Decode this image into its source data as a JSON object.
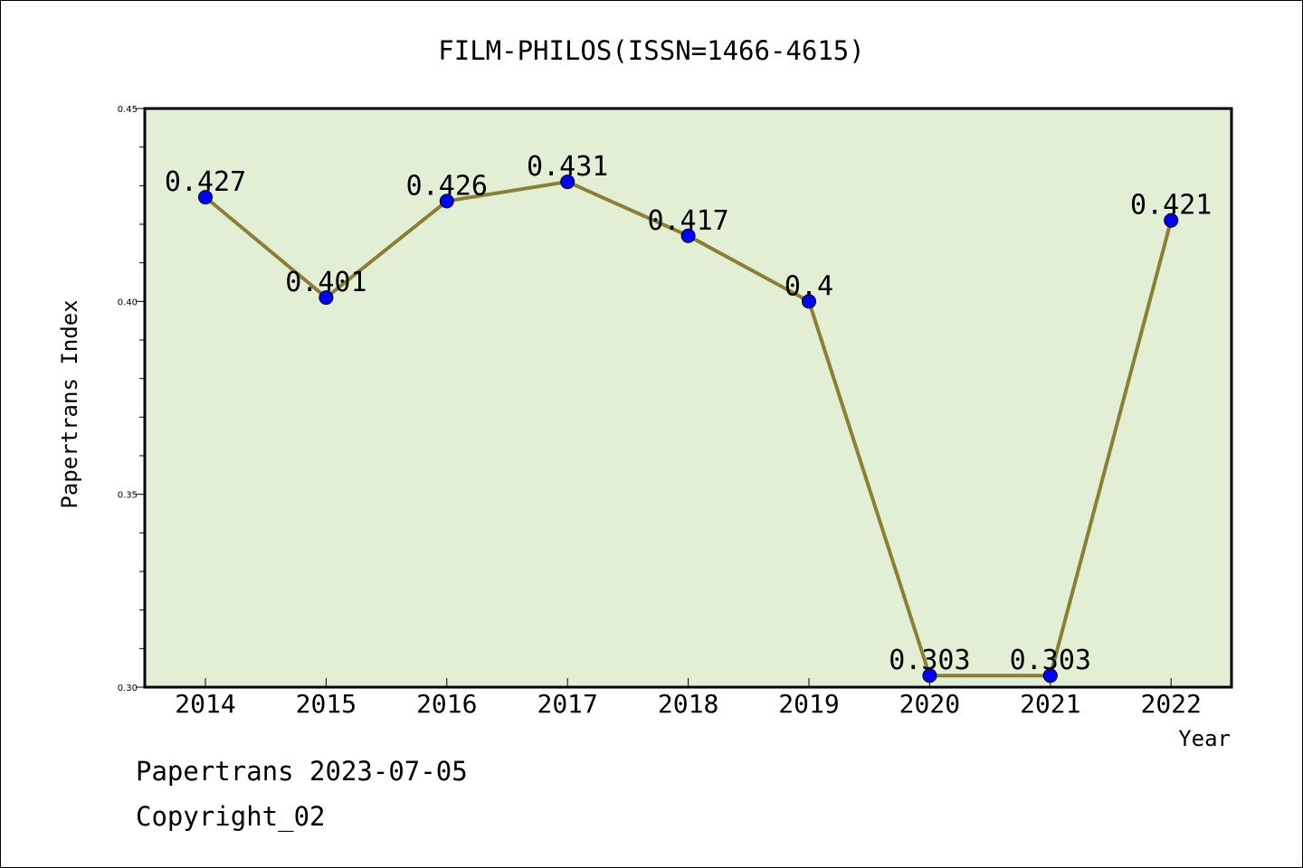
{
  "chart_data": {
    "type": "line",
    "title": "FILM-PHILOS(ISSN=1466-4615)",
    "xlabel": "Year",
    "ylabel": "Papertrans Index",
    "categories": [
      "2014",
      "2015",
      "2016",
      "2017",
      "2018",
      "2019",
      "2020",
      "2021",
      "2022"
    ],
    "values": [
      0.427,
      0.401,
      0.426,
      0.431,
      0.417,
      0.4,
      0.303,
      0.303,
      0.421
    ],
    "data_labels": [
      "0.427",
      "0.401",
      "0.426",
      "0.431",
      "0.417",
      "0.4",
      "0.303",
      "0.303",
      "0.421"
    ],
    "ylim": [
      0.3,
      0.45
    ],
    "yticks": [
      0.3,
      0.35,
      0.4,
      0.45
    ],
    "ytick_labels": [
      "0.30",
      "0.35",
      "0.40",
      "0.45"
    ],
    "grid": false,
    "legend": "none",
    "colors": {
      "plot_background": "#e2efd5",
      "line": "#8b7f35",
      "marker": "#0000ff"
    }
  },
  "footer": {
    "source_line": "Papertrans 2023-07-05",
    "copyright_line": "Copyright_02"
  }
}
